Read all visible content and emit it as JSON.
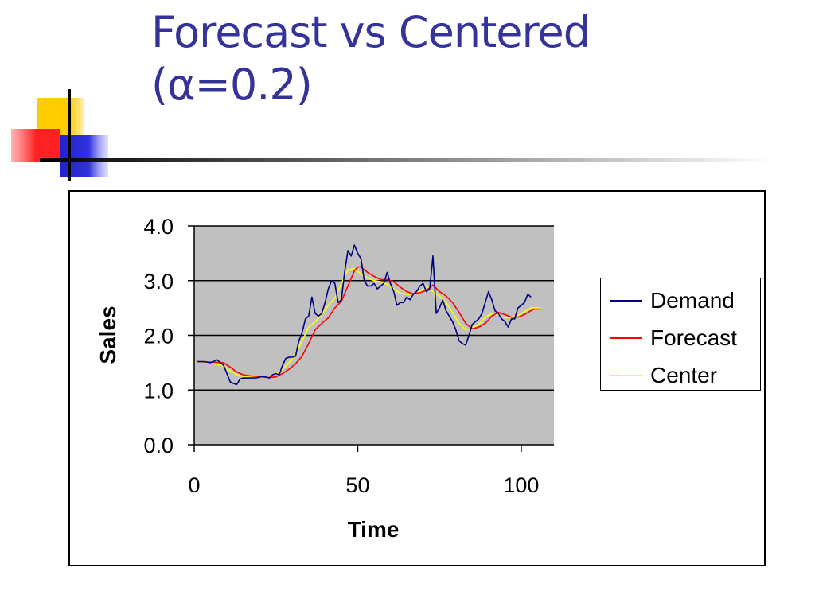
{
  "slide": {
    "title_line1": "Forecast vs Centered",
    "title_line2": "(α=0.2)"
  },
  "colors": {
    "title": "#333399",
    "plot_bg": "#c0c0c0",
    "demand": "#000080",
    "forecast": "#ff0000",
    "center": "#ffff00"
  },
  "chart_data": {
    "type": "line",
    "title": "",
    "xlabel": "Time",
    "ylabel": "Sales",
    "xlim": [
      0,
      110
    ],
    "ylim": [
      0,
      4
    ],
    "x_ticks": [
      0,
      50,
      100
    ],
    "y_ticks": [
      0.0,
      1.0,
      2.0,
      3.0,
      4.0
    ],
    "y_tick_labels": [
      "0.0",
      "1.0",
      "2.0",
      "3.0",
      "4.0"
    ],
    "grid": "horizontal major gridlines",
    "legend_position": "right",
    "series": [
      {
        "name": "Demand",
        "color": "#000080",
        "points": [
          [
            1,
            1.52
          ],
          [
            3,
            1.52
          ],
          [
            5,
            1.5
          ],
          [
            7,
            1.55
          ],
          [
            9,
            1.45
          ],
          [
            10,
            1.3
          ],
          [
            11,
            1.15
          ],
          [
            12,
            1.12
          ],
          [
            13,
            1.1
          ],
          [
            14,
            1.2
          ],
          [
            15,
            1.22
          ],
          [
            17,
            1.22
          ],
          [
            19,
            1.22
          ],
          [
            21,
            1.25
          ],
          [
            23,
            1.22
          ],
          [
            24,
            1.28
          ],
          [
            25,
            1.3
          ],
          [
            26,
            1.28
          ],
          [
            27,
            1.45
          ],
          [
            28,
            1.58
          ],
          [
            29,
            1.6
          ],
          [
            30,
            1.6
          ],
          [
            31,
            1.62
          ],
          [
            32,
            1.9
          ],
          [
            33,
            2.05
          ],
          [
            34,
            2.3
          ],
          [
            35,
            2.35
          ],
          [
            36,
            2.7
          ],
          [
            37,
            2.4
          ],
          [
            38,
            2.35
          ],
          [
            39,
            2.4
          ],
          [
            40,
            2.6
          ],
          [
            41,
            2.85
          ],
          [
            42,
            3.0
          ],
          [
            43,
            2.95
          ],
          [
            44,
            2.6
          ],
          [
            45,
            2.65
          ],
          [
            46,
            3.15
          ],
          [
            47,
            3.55
          ],
          [
            48,
            3.45
          ],
          [
            49,
            3.65
          ],
          [
            50,
            3.5
          ],
          [
            51,
            3.4
          ],
          [
            52,
            3.0
          ],
          [
            53,
            2.9
          ],
          [
            54,
            2.9
          ],
          [
            55,
            2.95
          ],
          [
            56,
            2.85
          ],
          [
            57,
            2.9
          ],
          [
            58,
            2.95
          ],
          [
            59,
            3.15
          ],
          [
            60,
            2.95
          ],
          [
            61,
            2.8
          ],
          [
            62,
            2.55
          ],
          [
            63,
            2.6
          ],
          [
            64,
            2.6
          ],
          [
            65,
            2.7
          ],
          [
            66,
            2.65
          ],
          [
            67,
            2.75
          ],
          [
            68,
            2.8
          ],
          [
            69,
            2.9
          ],
          [
            70,
            2.95
          ],
          [
            71,
            2.8
          ],
          [
            72,
            2.85
          ],
          [
            73,
            3.45
          ],
          [
            74,
            2.4
          ],
          [
            75,
            2.5
          ],
          [
            76,
            2.65
          ],
          [
            77,
            2.45
          ],
          [
            78,
            2.35
          ],
          [
            79,
            2.25
          ],
          [
            80,
            2.1
          ],
          [
            81,
            1.9
          ],
          [
            82,
            1.85
          ],
          [
            83,
            1.82
          ],
          [
            84,
            2.0
          ],
          [
            85,
            2.2
          ],
          [
            86,
            2.25
          ],
          [
            87,
            2.3
          ],
          [
            88,
            2.4
          ],
          [
            89,
            2.6
          ],
          [
            90,
            2.8
          ],
          [
            91,
            2.65
          ],
          [
            92,
            2.45
          ],
          [
            93,
            2.4
          ],
          [
            94,
            2.3
          ],
          [
            95,
            2.25
          ],
          [
            96,
            2.15
          ],
          [
            97,
            2.3
          ],
          [
            98,
            2.3
          ],
          [
            99,
            2.5
          ],
          [
            100,
            2.55
          ],
          [
            101,
            2.6
          ],
          [
            102,
            2.75
          ],
          [
            103,
            2.7
          ]
        ]
      },
      {
        "name": "Forecast",
        "color": "#ff0000",
        "points": [
          [
            1,
            1.52
          ],
          [
            5,
            1.51
          ],
          [
            9,
            1.5
          ],
          [
            11,
            1.42
          ],
          [
            13,
            1.33
          ],
          [
            15,
            1.28
          ],
          [
            17,
            1.26
          ],
          [
            19,
            1.25
          ],
          [
            21,
            1.24
          ],
          [
            23,
            1.23
          ],
          [
            25,
            1.24
          ],
          [
            27,
            1.3
          ],
          [
            29,
            1.38
          ],
          [
            31,
            1.48
          ],
          [
            33,
            1.62
          ],
          [
            35,
            1.85
          ],
          [
            37,
            2.1
          ],
          [
            39,
            2.22
          ],
          [
            41,
            2.32
          ],
          [
            43,
            2.5
          ],
          [
            45,
            2.62
          ],
          [
            47,
            2.9
          ],
          [
            49,
            3.18
          ],
          [
            50,
            3.25
          ],
          [
            51,
            3.25
          ],
          [
            53,
            3.15
          ],
          [
            55,
            3.08
          ],
          [
            57,
            3.02
          ],
          [
            59,
            3.02
          ],
          [
            61,
            2.98
          ],
          [
            63,
            2.88
          ],
          [
            65,
            2.8
          ],
          [
            67,
            2.76
          ],
          [
            69,
            2.78
          ],
          [
            71,
            2.82
          ],
          [
            73,
            2.92
          ],
          [
            75,
            2.8
          ],
          [
            77,
            2.72
          ],
          [
            79,
            2.6
          ],
          [
            81,
            2.42
          ],
          [
            83,
            2.22
          ],
          [
            85,
            2.12
          ],
          [
            87,
            2.15
          ],
          [
            89,
            2.22
          ],
          [
            91,
            2.35
          ],
          [
            93,
            2.42
          ],
          [
            95,
            2.38
          ],
          [
            97,
            2.33
          ],
          [
            99,
            2.33
          ],
          [
            101,
            2.38
          ],
          [
            103,
            2.45
          ],
          [
            104,
            2.48
          ],
          [
            106,
            2.48
          ]
        ]
      },
      {
        "name": "Center",
        "color": "#ffff00",
        "points": [
          [
            1,
            1.52
          ],
          [
            5,
            1.5
          ],
          [
            9,
            1.44
          ],
          [
            11,
            1.35
          ],
          [
            13,
            1.28
          ],
          [
            15,
            1.25
          ],
          [
            17,
            1.24
          ],
          [
            19,
            1.23
          ],
          [
            21,
            1.24
          ],
          [
            23,
            1.25
          ],
          [
            25,
            1.3
          ],
          [
            27,
            1.38
          ],
          [
            29,
            1.5
          ],
          [
            31,
            1.65
          ],
          [
            33,
            1.9
          ],
          [
            35,
            2.15
          ],
          [
            37,
            2.25
          ],
          [
            39,
            2.38
          ],
          [
            41,
            2.55
          ],
          [
            43,
            2.68
          ],
          [
            45,
            2.95
          ],
          [
            47,
            3.2
          ],
          [
            49,
            3.22
          ],
          [
            51,
            3.12
          ],
          [
            53,
            3.05
          ],
          [
            55,
            3.0
          ],
          [
            57,
            2.98
          ],
          [
            59,
            2.93
          ],
          [
            61,
            2.85
          ],
          [
            63,
            2.77
          ],
          [
            65,
            2.75
          ],
          [
            67,
            2.76
          ],
          [
            69,
            2.8
          ],
          [
            71,
            2.9
          ],
          [
            73,
            2.8
          ],
          [
            75,
            2.72
          ],
          [
            77,
            2.6
          ],
          [
            79,
            2.42
          ],
          [
            81,
            2.22
          ],
          [
            83,
            2.1
          ],
          [
            85,
            2.13
          ],
          [
            87,
            2.2
          ],
          [
            89,
            2.33
          ],
          [
            91,
            2.4
          ],
          [
            93,
            2.37
          ],
          [
            95,
            2.32
          ],
          [
            97,
            2.32
          ],
          [
            99,
            2.36
          ],
          [
            101,
            2.43
          ],
          [
            103,
            2.5
          ],
          [
            106,
            2.5
          ]
        ]
      }
    ]
  }
}
